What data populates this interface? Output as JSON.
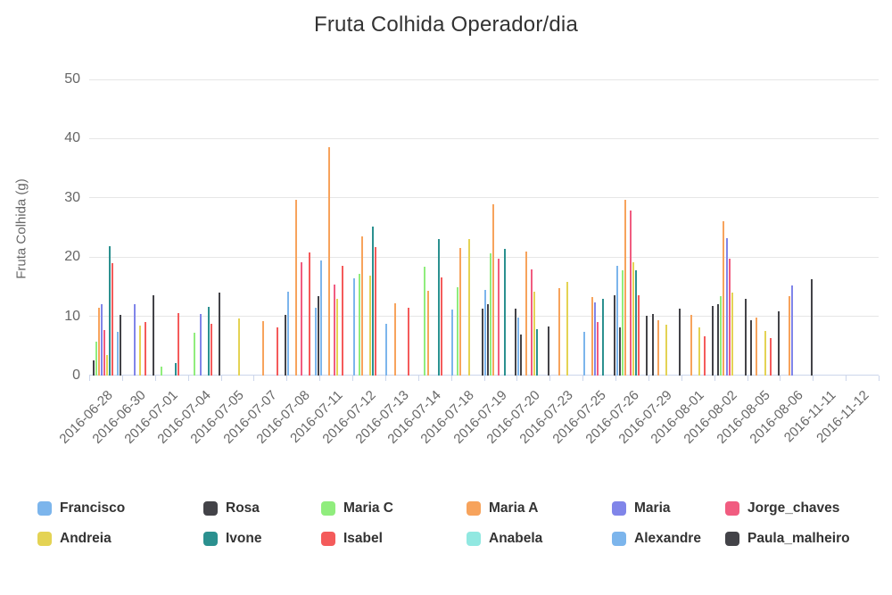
{
  "title": "Fruta Colhida Operador/dia",
  "colors": {
    "grid": "#e6e6e6",
    "axis": "#ccd6eb",
    "title_text": "#333333",
    "label_text": "#666666",
    "legend_text": "#333333"
  },
  "chart_data": {
    "type": "bar",
    "title": "Fruta Colhida Operador/dia",
    "xlabel": "",
    "ylabel": "Fruta Colhida (g)",
    "ylim": [
      0,
      50
    ],
    "yticks": [
      0,
      10,
      20,
      30,
      40,
      50
    ],
    "grid": true,
    "legend_position": "bottom",
    "categories": [
      "2016-06-28",
      "2016-06-30",
      "2016-07-01",
      "2016-07-04",
      "2016-07-05",
      "2016-07-07",
      "2016-07-08",
      "2016-07-11",
      "2016-07-12",
      "2016-07-13",
      "2016-07-14",
      "2016-07-18",
      "2016-07-19",
      "2016-07-20",
      "2016-07-23",
      "2016-07-25",
      "2016-07-26",
      "2016-07-29",
      "2016-08-01",
      "2016-08-02",
      "2016-08-05",
      "2016-08-06",
      "2016-11-11",
      "2016-11-12"
    ],
    "series": [
      {
        "name": "Francisco",
        "color": "#7cb5ec",
        "values": [
          0,
          0,
          0,
          0,
          0,
          0,
          14.2,
          19.5,
          16.4,
          8.7,
          0,
          11.1,
          14.5,
          9.8,
          0,
          7.4,
          18.5,
          0,
          0,
          0,
          0,
          0,
          0,
          0
        ]
      },
      {
        "name": "Rosa",
        "color": "#434348",
        "values": [
          2.5,
          0,
          0,
          0,
          0,
          0,
          0,
          0,
          0,
          0,
          0,
          0,
          12,
          6.9,
          0,
          0,
          8.1,
          10.4,
          0,
          12,
          9.4,
          0,
          0,
          0
        ]
      },
      {
        "name": "Maria C",
        "color": "#90ed7d",
        "values": [
          5.7,
          0,
          1.5,
          7.3,
          0,
          0,
          0,
          0,
          17.2,
          0,
          18.4,
          14.9,
          20.6,
          0,
          0,
          0,
          17.7,
          0,
          0,
          13.4,
          0,
          0,
          0,
          0
        ]
      },
      {
        "name": "Maria A",
        "color": "#f7a35c",
        "values": [
          11.4,
          0,
          0,
          0,
          0,
          9.2,
          29.6,
          38.6,
          23.5,
          12.2,
          14.3,
          21.5,
          28.9,
          20.9,
          14.7,
          13.3,
          29.6,
          9.3,
          10.3,
          26.1,
          9.8,
          13.4,
          0,
          0
        ]
      },
      {
        "name": "Maria",
        "color": "#8085e9",
        "values": [
          12,
          12,
          0,
          10.4,
          0,
          0,
          0,
          0,
          0,
          0,
          0,
          0,
          0,
          0,
          0,
          12.3,
          0,
          0,
          0,
          23.2,
          0,
          15.2,
          0,
          0
        ]
      },
      {
        "name": "Jorge_chaves",
        "color": "#f15c80",
        "values": [
          7.7,
          0,
          0,
          0,
          0,
          0,
          19.2,
          15.3,
          0,
          0,
          0,
          0,
          19.7,
          17.9,
          0,
          9,
          27.8,
          0,
          0,
          19.7,
          0,
          0,
          0,
          0
        ]
      },
      {
        "name": "Andreia",
        "color": "#e4d354",
        "values": [
          3.5,
          8.5,
          0,
          0,
          9.7,
          0,
          0,
          13,
          16.8,
          0,
          0,
          23,
          0,
          14.1,
          15.8,
          0,
          19.1,
          8.6,
          8.2,
          14,
          7.5,
          0,
          0,
          0
        ]
      },
      {
        "name": "Ivone",
        "color": "#2b908f",
        "values": [
          21.9,
          0,
          2.1,
          11.6,
          0,
          0,
          0,
          0,
          25.2,
          0,
          23,
          0,
          21.4,
          7.9,
          0,
          12.9,
          17.8,
          0,
          0,
          0,
          0,
          0,
          0,
          0
        ]
      },
      {
        "name": "Isabel",
        "color": "#f45b5b",
        "values": [
          19,
          9.1,
          10.6,
          8.7,
          0,
          8.1,
          20.8,
          18.6,
          21.7,
          11.5,
          16.6,
          0,
          0,
          0,
          0,
          0,
          13.5,
          0,
          6.7,
          0,
          6.3,
          0,
          0,
          0
        ]
      },
      {
        "name": "Anabela",
        "color": "#91e8e1",
        "values": [
          0,
          0,
          0,
          0,
          0,
          0,
          0,
          0,
          0,
          0,
          0,
          0,
          0,
          0,
          0,
          0,
          0,
          0,
          0,
          0,
          0,
          0,
          0,
          0
        ]
      },
      {
        "name": "Alexandre",
        "color": "#7cb5ec",
        "values": [
          7.4,
          0,
          0,
          0,
          0,
          0,
          11.4,
          0,
          0,
          0,
          0,
          0,
          0,
          0,
          0,
          0,
          0,
          0,
          0,
          0,
          0,
          0,
          0,
          0
        ]
      },
      {
        "name": "Paula_malheiro",
        "color": "#434348",
        "values": [
          10.2,
          13.5,
          0,
          14,
          0,
          10.2,
          13.4,
          0,
          0,
          0,
          0,
          11.3,
          11.3,
          8.3,
          0,
          13.5,
          10.1,
          11.3,
          11.7,
          12.9,
          10.9,
          16.3,
          0,
          0
        ]
      }
    ]
  }
}
